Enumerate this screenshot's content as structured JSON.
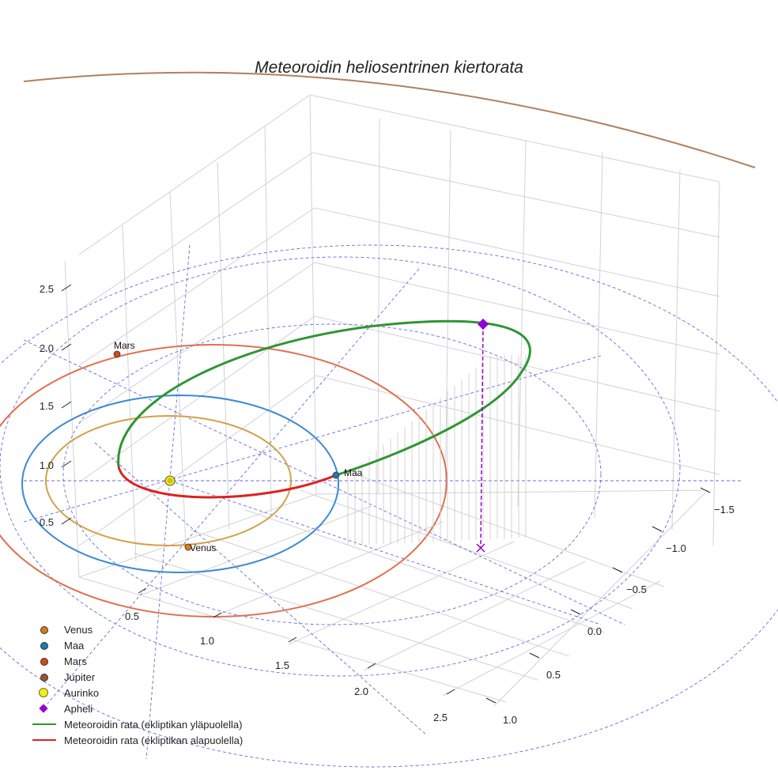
{
  "chart_data": {
    "type": "line",
    "title": "Meteoroidin heliosentrinen kiertorata",
    "projection": "3d",
    "grid": true,
    "legend_position": "bottom-left",
    "axes": {
      "x_ticks": [
        "0.5",
        "1.0",
        "1.5",
        "2.0",
        "2.5"
      ],
      "y_ticks": [
        "−1.5",
        "−1.0",
        "−0.5",
        "0.0",
        "0.5",
        "1.0"
      ],
      "z_ticks": [
        "0.5",
        "1.0",
        "1.5",
        "2.0",
        "2.5"
      ]
    },
    "bodies": [
      {
        "name": "Venus",
        "color": "#e07b1a",
        "orbit_color": "#d4a04a",
        "label": "Venus"
      },
      {
        "name": "Maa",
        "color": "#1f77b4",
        "orbit_color": "#3a8ad4",
        "label": "Maa"
      },
      {
        "name": "Mars",
        "color": "#d04a1a",
        "orbit_color": "#e07050",
        "label": "Mars"
      },
      {
        "name": "Jupiter",
        "color": "#a0522d",
        "orbit_color": "#b08060"
      },
      {
        "name": "Aurinko",
        "color": "#f5f000"
      }
    ],
    "markers": [
      {
        "name": "Apheli",
        "color": "#9400d3",
        "shape": "diamond"
      }
    ],
    "series": [
      {
        "name": "Meteoroidin rata (ekliptikan yläpuolella)",
        "color": "#2e9632"
      },
      {
        "name": "Meteoroidin rata (ekliptikan alapuolella)",
        "color": "#e02020"
      }
    ]
  },
  "legend": [
    {
      "label": "Venus",
      "kind": "dot",
      "color": "#d87a10"
    },
    {
      "label": "Maa",
      "kind": "dot",
      "color": "#1f77b4"
    },
    {
      "label": "Mars",
      "kind": "dot",
      "color": "#d04a1a"
    },
    {
      "label": "Jupiter",
      "kind": "dot",
      "color": "#a0522d"
    },
    {
      "label": "Aurinko",
      "kind": "sun",
      "color": "#f5f000"
    },
    {
      "label": "Apheli",
      "kind": "diamond",
      "color": "#9400d3"
    },
    {
      "label": "Meteoroidin rata (ekliptikan yläpuolella)",
      "kind": "line",
      "color": "#2e9632"
    },
    {
      "label": "Meteoroidin rata (ekliptikan alapuolella)",
      "kind": "line",
      "color": "#e02020"
    }
  ]
}
